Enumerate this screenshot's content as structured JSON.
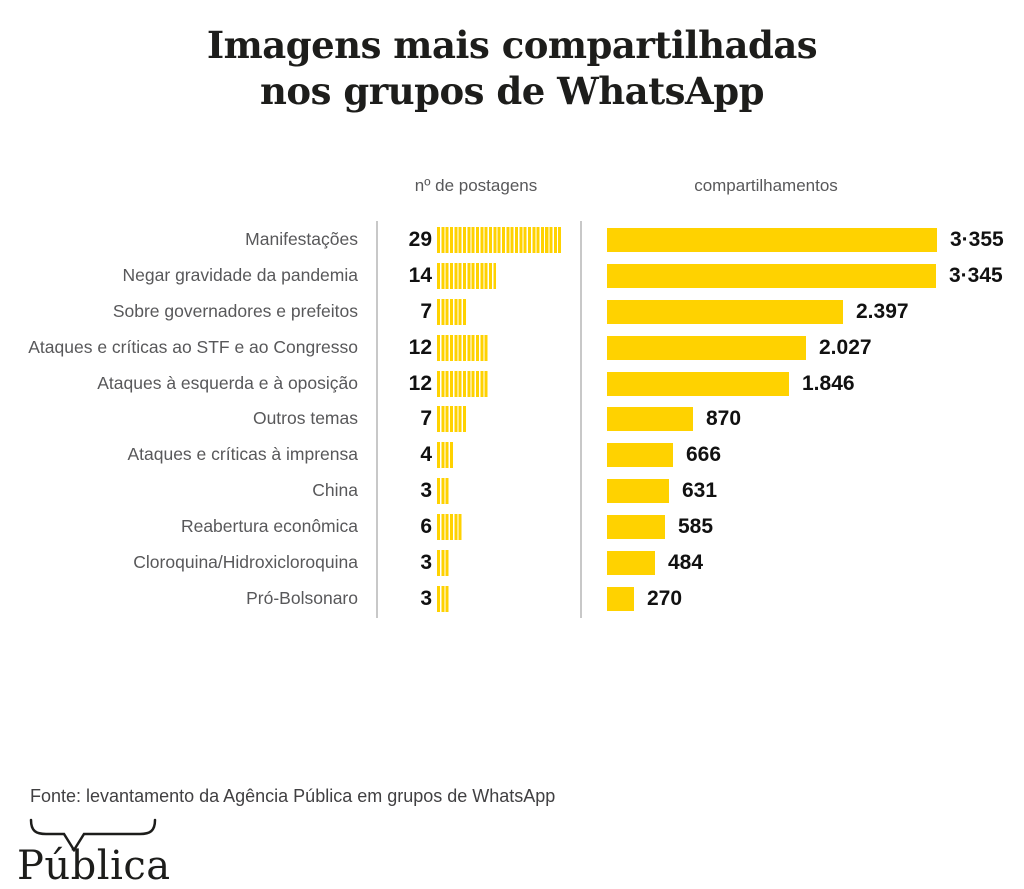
{
  "title": {
    "line1": "Imagens mais compartilhadas",
    "line2": "nos grupos de WhatsApp"
  },
  "columns": {
    "posts": "nº de postagens",
    "shares": "compartilhamentos"
  },
  "footer": {
    "source": "Fonte: levantamento da Agência Pública em grupos de WhatsApp"
  },
  "logo": {
    "text": "Pública",
    "icon": "speech-bubble-bracket-icon"
  },
  "colors": {
    "bar_yellow": "#FFD200",
    "label_gray": "#58585a",
    "ink": "#1d1d1b"
  },
  "chart_data": {
    "type": "bar",
    "orientation": "horizontal",
    "title": "Imagens mais compartilhadas nos grupos de WhatsApp",
    "categories": [
      "Manifestações",
      "Negar gravidade da pandemia",
      "Sobre governadores e prefeitos",
      "Ataques e críticas ao STF e ao Congresso",
      "Ataques à esquerda e à oposição",
      "Outros temas",
      "Ataques e críticas à imprensa",
      "China",
      "Reabertura econômica",
      "Cloroquina/Hidroxicloroquina",
      "Pró-Bolsonaro"
    ],
    "series": [
      {
        "name": "nº de postagens",
        "style": "tally-stripes",
        "values": [
          29,
          14,
          7,
          12,
          12,
          7,
          4,
          3,
          6,
          3,
          3
        ],
        "value_labels": [
          "29",
          "14",
          "7",
          "12",
          "12",
          "7",
          "4",
          "3",
          "6",
          "3",
          "3"
        ]
      },
      {
        "name": "compartilhamentos",
        "style": "solid-bar",
        "values": [
          3355,
          3345,
          2397,
          2027,
          1846,
          870,
          666,
          631,
          585,
          484,
          270
        ],
        "value_labels": [
          "3·355",
          "3·345",
          "2.397",
          "2.027",
          "1.846",
          "870",
          "666",
          "631",
          "585",
          "484",
          "270"
        ]
      }
    ],
    "xlim_shares": [
      0,
      3355
    ],
    "grid": false,
    "legend_position": "column-headers-top",
    "value_labels_shown": true
  }
}
